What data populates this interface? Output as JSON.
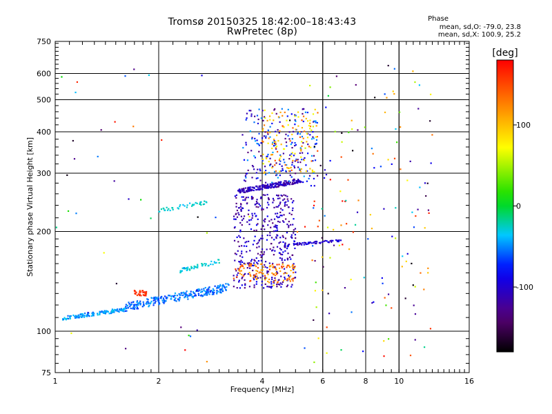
{
  "chart_data": {
    "type": "scatter",
    "title": "Tromsø 20150325 18:42:00–18:43:43",
    "subtitle": "RwPretec (8p)",
    "xlabel": "Frequency [MHz]",
    "ylabel": "Stationary phase Virtual Height [km]",
    "x_scale": "log",
    "y_scale": "log",
    "xlim": [
      1,
      16
    ],
    "ylim": [
      75,
      750
    ],
    "x_ticks": [
      1,
      2,
      4,
      6,
      8,
      10,
      16
    ],
    "y_ticks": [
      75,
      100,
      200,
      300,
      400,
      500,
      600,
      750
    ],
    "grid": true,
    "colorbar": {
      "label": "[deg]",
      "range": [
        -180,
        180
      ],
      "ticks": [
        100,
        0,
        -100
      ],
      "colormap": "rainbow (black-purple-blue-cyan-green-yellow-red)"
    },
    "annotations": {
      "phase_title": "Phase",
      "line1": "mean, sd,O: -79.0, 23.8",
      "line2": "mean, sd,X: 100.9, 25.2"
    },
    "groups": [
      {
        "x": [
          1.05,
          1.6
        ],
        "y": [
          108,
          118
        ],
        "phase": [
          -60,
          -30
        ],
        "n": 140,
        "shape": "lower-trace"
      },
      {
        "x": [
          1.6,
          3.2
        ],
        "y": [
          115,
          140
        ],
        "phase": [
          -70,
          -40
        ],
        "n": 260,
        "shape": "lower-trace"
      },
      {
        "x": [
          3.3,
          5.0
        ],
        "y": [
          135,
          260
        ],
        "phase": [
          -140,
          -80
        ],
        "n": 420,
        "shape": "cloud"
      },
      {
        "x": [
          3.3,
          5.0
        ],
        "y": [
          140,
          160
        ],
        "phase": [
          100,
          160
        ],
        "n": 110,
        "shape": "cloud"
      },
      {
        "x": [
          3.4,
          5.2
        ],
        "y": [
          260,
          290
        ],
        "phase": [
          -130,
          -90
        ],
        "n": 200,
        "shape": "band"
      },
      {
        "x": [
          3.5,
          5.8
        ],
        "y": [
          280,
          470
        ],
        "phase": [
          -140,
          -40
        ],
        "n": 220,
        "shape": "cloud"
      },
      {
        "x": [
          4.0,
          5.8
        ],
        "y": [
          300,
          470
        ],
        "phase": [
          60,
          150
        ],
        "n": 120,
        "shape": "cloud"
      },
      {
        "x": [
          4.6,
          6.8
        ],
        "y": [
          180,
          190
        ],
        "phase": [
          -120,
          -80
        ],
        "n": 70,
        "shape": "band"
      },
      {
        "x": [
          1.7,
          1.85
        ],
        "y": [
          128,
          133
        ],
        "phase": [
          150,
          170
        ],
        "n": 30,
        "shape": "cluster"
      },
      {
        "x": [
          2.3,
          3.0
        ],
        "y": [
          150,
          165
        ],
        "phase": [
          -40,
          -20
        ],
        "n": 50,
        "shape": "band"
      },
      {
        "x": [
          2.0,
          2.8
        ],
        "y": [
          228,
          250
        ],
        "phase": [
          -40,
          -20
        ],
        "n": 40,
        "shape": "band"
      },
      {
        "x": [
          5.5,
          12.5
        ],
        "y": [
          80,
          640
        ],
        "phase": [
          -180,
          180
        ],
        "n": 150,
        "shape": "scatter"
      },
      {
        "x": [
          1.0,
          5.5
        ],
        "y": [
          80,
          640
        ],
        "phase": [
          -180,
          180
        ],
        "n": 45,
        "shape": "scatter"
      }
    ]
  }
}
